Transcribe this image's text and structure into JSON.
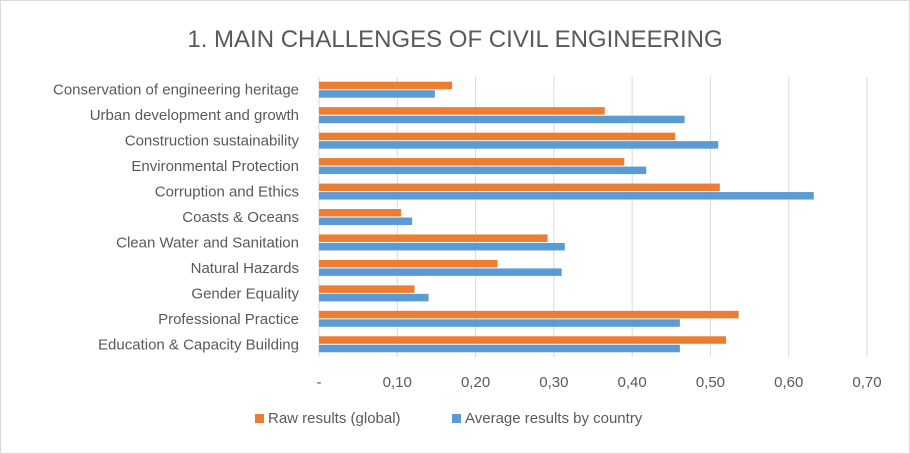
{
  "chart_data": {
    "type": "bar",
    "orientation": "horizontal",
    "title": "1. MAIN CHALLENGES OF CIVIL ENGINEERING",
    "categories": [
      "Conservation of engineering heritage",
      "Urban development and growth",
      "Construction sustainability",
      "Environmental Protection",
      "Corruption and Ethics",
      "Coasts & Oceans",
      "Clean Water and Sanitation",
      "Natural Hazards",
      "Gender Equality",
      "Professional Practice",
      "Education & Capacity Building"
    ],
    "series": [
      {
        "name": "Raw results (global)",
        "color": "#ed7d31",
        "values": [
          0.17,
          0.365,
          0.455,
          0.39,
          0.512,
          0.105,
          0.292,
          0.228,
          0.122,
          0.536,
          0.52
        ]
      },
      {
        "name": "Average results by country",
        "color": "#5b9bd5",
        "values": [
          0.148,
          0.467,
          0.51,
          0.418,
          0.632,
          0.119,
          0.314,
          0.31,
          0.14,
          0.461,
          0.461
        ]
      }
    ],
    "xlim": [
      0,
      0.7
    ],
    "xticks": [
      0,
      0.1,
      0.2,
      0.3,
      0.4,
      0.5,
      0.6,
      0.7
    ],
    "xtick_labels": [
      "-",
      "0,10",
      "0,20",
      "0,30",
      "0,40",
      "0,50",
      "0,60",
      "0,70"
    ],
    "grid": true,
    "legend_position": "bottom"
  }
}
